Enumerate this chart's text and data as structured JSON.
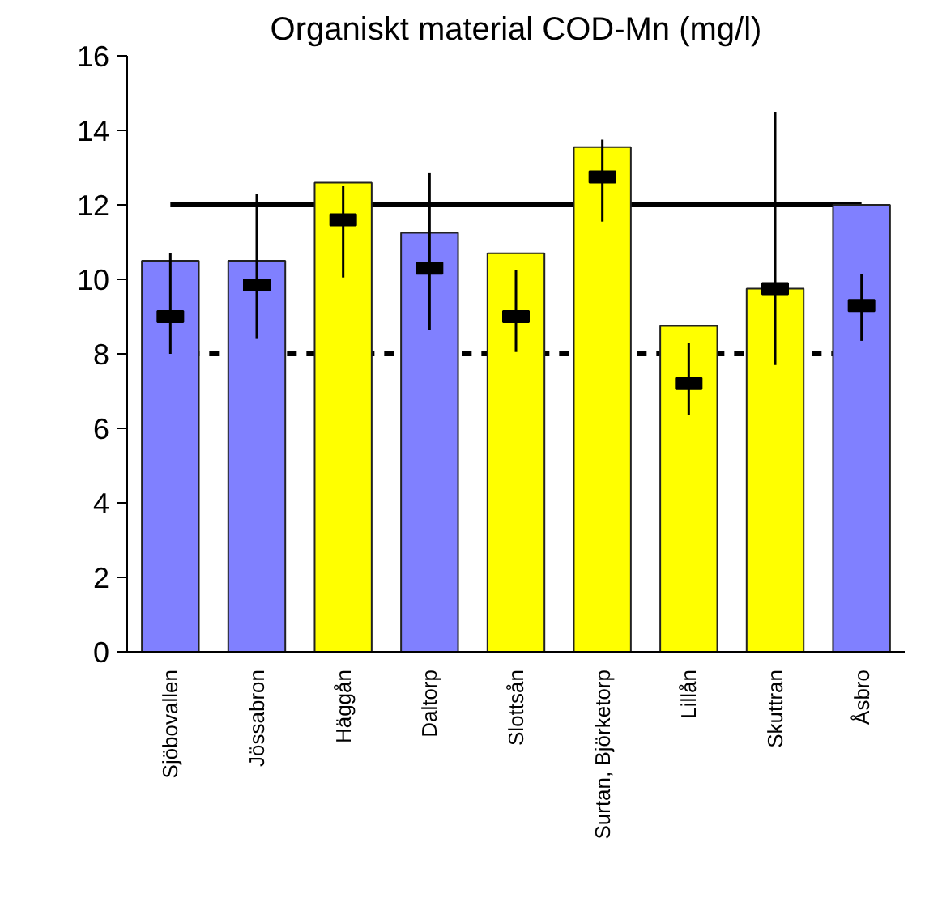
{
  "chart_data": {
    "type": "bar",
    "title": "Organiskt material COD-Mn (mg/l)",
    "categories": [
      "Sjöbovallen",
      "Jössabron",
      "Häggån",
      "Daltorp",
      "Slottsån",
      "Surtan, Björketorp",
      "Lillån",
      "Skuttran",
      "Åsbro"
    ],
    "series": [
      {
        "colors": [
          "#8080ff",
          "#8080ff",
          "#ffff00",
          "#8080ff",
          "#ffff00",
          "#ffff00",
          "#ffff00",
          "#ffff00",
          "#8080ff"
        ],
        "values": [
          10.5,
          10.5,
          12.6,
          11.25,
          10.7,
          13.55,
          8.75,
          9.75,
          12.0
        ]
      },
      {
        "type": "scatter",
        "color": "#000000",
        "x": [
          "Sjöbovallen",
          "Jössabron",
          "Häggån",
          "Daltorp",
          "Slottsån",
          "Surtan, Björketorp",
          "Lillån",
          "Skuttran",
          "Åsbro"
        ],
        "values": [
          9.0,
          9.85,
          11.6,
          10.3,
          9.0,
          12.75,
          7.2,
          9.75,
          9.3
        ],
        "errors": [
          [
            8.0,
            10.7
          ],
          [
            8.4,
            12.3
          ],
          [
            10.05,
            12.5
          ],
          [
            8.65,
            12.85
          ],
          [
            8.05,
            10.25
          ],
          [
            11.55,
            13.75
          ],
          [
            6.35,
            8.3
          ],
          [
            7.7,
            14.5
          ],
          [
            8.35,
            10.15
          ]
        ]
      }
    ],
    "ylim": [
      0,
      16
    ],
    "yticks": [
      0,
      2,
      4,
      6,
      8,
      10,
      12,
      14,
      16
    ],
    "grid": false,
    "ref_lines": [
      {
        "axis": "y",
        "value": 12,
        "color": "#000000",
        "line_style": "solid"
      },
      {
        "axis": "y",
        "value": 8,
        "color": "#000000",
        "line_style": "dashed"
      }
    ]
  }
}
